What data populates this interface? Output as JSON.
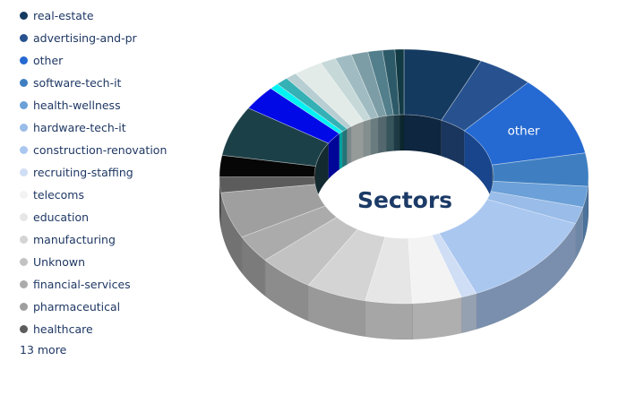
{
  "title": "Sectors",
  "legend": {
    "items": [
      {
        "label": "real-estate",
        "color": "#153a60"
      },
      {
        "label": "advertising-and-pr",
        "color": "#27528f"
      },
      {
        "label": "other",
        "color": "#2569d2"
      },
      {
        "label": "software-tech-it",
        "color": "#3f7fc1"
      },
      {
        "label": "health-wellness",
        "color": "#6ba0d8"
      },
      {
        "label": "hardware-tech-it",
        "color": "#99bce8"
      },
      {
        "label": "construction-renovation",
        "color": "#aac7f0"
      },
      {
        "label": "recruiting-staffing",
        "color": "#cfdef5"
      },
      {
        "label": "telecoms",
        "color": "#f3f3f3"
      },
      {
        "label": "education",
        "color": "#e6e6e6"
      },
      {
        "label": "manufacturing",
        "color": "#d4d4d4"
      },
      {
        "label": "Unknown",
        "color": "#c2c2c2"
      },
      {
        "label": "financial-services",
        "color": "#ababab"
      },
      {
        "label": "pharmaceutical",
        "color": "#9f9f9f"
      },
      {
        "label": "healthcare",
        "color": "#5c5c5c"
      }
    ],
    "more_label": "13 more",
    "text_color": "#1f3864"
  },
  "chart_data": {
    "type": "pie",
    "style": "3d-donut",
    "title": "Sectors",
    "center_label": "Sectors",
    "center_label_color": "#1b3a66",
    "start_angle_deg": 0,
    "clockwise": true,
    "legend_position": "left",
    "callout": {
      "for_slice": "other",
      "text": "other",
      "color": "#ffffff"
    },
    "slices": [
      {
        "label": "real-estate",
        "value": 7.0,
        "color": "#153a60"
      },
      {
        "label": "advertising-and-pr",
        "value": 5.0,
        "color": "#27528f"
      },
      {
        "label": "other",
        "value": 10.5,
        "color": "#2569d2"
      },
      {
        "label": "software-tech-it",
        "value": 4.3,
        "color": "#3f7fc1"
      },
      {
        "label": "health-wellness",
        "value": 2.7,
        "color": "#6ba0d8"
      },
      {
        "label": "hardware-tech-it",
        "value": 2.2,
        "color": "#99bce8"
      },
      {
        "label": "construction-renovation",
        "value": 12.8,
        "color": "#aac7f0"
      },
      {
        "label": "recruiting-staffing",
        "value": 1.4,
        "color": "#cfdef5"
      },
      {
        "label": "telecoms",
        "value": 4.4,
        "color": "#f3f3f3"
      },
      {
        "label": "education",
        "value": 4.2,
        "color": "#e6e6e6"
      },
      {
        "label": "manufacturing",
        "value": 5.4,
        "color": "#d4d4d4"
      },
      {
        "label": "Unknown",
        "value": 5.0,
        "color": "#c2c2c2"
      },
      {
        "label": "financial-services",
        "value": 3.6,
        "color": "#ababab"
      },
      {
        "label": "pharmaceutical",
        "value": 6.0,
        "color": "#9f9f9f"
      },
      {
        "label": "healthcare",
        "value": 2.0,
        "color": "#5c5c5c"
      },
      {
        "label": "",
        "value": 2.8,
        "color": "#060606"
      },
      {
        "label": "",
        "value": 6.5,
        "color": "#1c4048"
      },
      {
        "label": "",
        "value": 3.2,
        "color": "#0009e6"
      },
      {
        "label": "",
        "value": 0.8,
        "color": "#00f2f2"
      },
      {
        "label": "",
        "value": 1.1,
        "color": "#35b0b4"
      },
      {
        "label": "",
        "value": 1.0,
        "color": "#b7ced2"
      },
      {
        "label": "",
        "value": 2.6,
        "color": "#e2ebe8"
      },
      {
        "label": "",
        "value": 1.4,
        "color": "#c6d8d8"
      },
      {
        "label": "",
        "value": 1.5,
        "color": "#a0bcc2"
      },
      {
        "label": "",
        "value": 1.5,
        "color": "#7d9da6"
      },
      {
        "label": "",
        "value": 1.3,
        "color": "#527f8b"
      },
      {
        "label": "",
        "value": 1.1,
        "color": "#2d5a68"
      },
      {
        "label": "",
        "value": 0.8,
        "color": "#123a44"
      }
    ]
  }
}
